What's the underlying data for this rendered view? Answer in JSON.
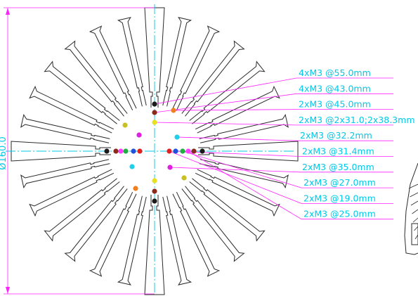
{
  "drawing": {
    "diameter_label": "Ø160.0",
    "colors": {
      "outline": "#2a2a2a",
      "centerline": "#00c8e8",
      "dimension": "#ff20ff",
      "leader": "#ff20ff",
      "label_text": "#00c8e8"
    },
    "fin_count": 28,
    "hole_callouts": [
      {
        "text": "4xM3  @55.0mm",
        "color": "#1a1a1a"
      },
      {
        "text": "4xM3  @43.0mm",
        "color": "#8b2a1a"
      },
      {
        "text": "2xM3  @45.0mm",
        "color": "#f08020"
      },
      {
        "text": "2xM3  @2x31.0;2x38.3mm",
        "color": "#e8e020"
      },
      {
        "text": "2xM3  @32.2mm",
        "color": "#20d0e8"
      },
      {
        "text": "2xM3  @31.4mm",
        "color": "#2050e0"
      },
      {
        "text": "2xM3  @35.0mm",
        "color": "#e020e0"
      },
      {
        "text": "2xM3  @27.0mm",
        "color": "#20b040"
      },
      {
        "text": "2xM3  @19.0mm",
        "color": "#e02020"
      },
      {
        "text": "2xM3  @25.0mm",
        "color": "#ff40ff"
      }
    ]
  }
}
